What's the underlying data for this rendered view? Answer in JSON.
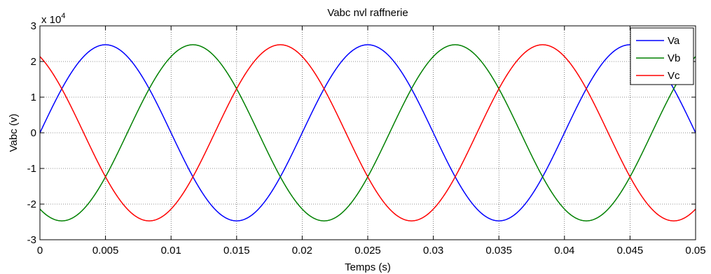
{
  "chart_data": {
    "type": "line",
    "title": "Vabc nvl raffnerie",
    "xlabel": "Temps (s)",
    "ylabel": "Vabc (v)",
    "xlim": [
      0,
      0.05
    ],
    "ylim": [
      -3,
      3
    ],
    "y_multiplier_label": "x 10",
    "y_multiplier_exponent": "4",
    "xticks": [
      "0",
      "0.005",
      "0.01",
      "0.015",
      "0.02",
      "0.025",
      "0.03",
      "0.035",
      "0.04",
      "0.045",
      "0.05"
    ],
    "yticks": [
      "-3",
      "-2",
      "-1",
      "0",
      "1",
      "2",
      "3"
    ],
    "grid": true,
    "legend_position": "top-right",
    "frequency_hz": 50,
    "amplitude": 2.47,
    "series": [
      {
        "name": "Va",
        "color": "#0000ff",
        "phase_deg": 0
      },
      {
        "name": "Vb",
        "color": "#008000",
        "phase_deg": -120
      },
      {
        "name": "Vc",
        "color": "#ff0000",
        "phase_deg": 120
      }
    ]
  }
}
